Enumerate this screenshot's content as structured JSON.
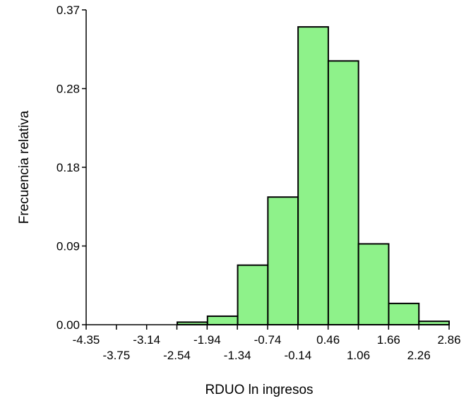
{
  "chart_data": {
    "type": "bar",
    "title": "",
    "xlabel": "RDUO ln ingresos",
    "ylabel": "Frecuencia relativa",
    "bar_color": "#8ef28a",
    "bar_stroke": "#000000",
    "grid": false,
    "ylim": [
      0,
      0.37
    ],
    "xlim": [
      -4.35,
      2.86
    ],
    "y_ticks": [
      "0.00",
      "0.09",
      "0.18",
      "0.28",
      "0.37"
    ],
    "x_ticks_upper": [
      "-4.35",
      "-3.14",
      "-1.94",
      "-0.74",
      "0.46",
      "1.66",
      "2.86"
    ],
    "x_ticks_lower": [
      "-3.75",
      "-2.54",
      "-1.34",
      "-0.14",
      "1.06",
      "2.26"
    ],
    "bins": [
      {
        "start": -4.35,
        "end": -3.75,
        "value": 0.0
      },
      {
        "start": -3.75,
        "end": -3.14,
        "value": 0.0
      },
      {
        "start": -3.14,
        "end": -2.54,
        "value": 0.0
      },
      {
        "start": -2.54,
        "end": -1.94,
        "value": 0.003
      },
      {
        "start": -1.94,
        "end": -1.34,
        "value": 0.01
      },
      {
        "start": -1.34,
        "end": -0.74,
        "value": 0.07
      },
      {
        "start": -0.74,
        "end": -0.14,
        "value": 0.15
      },
      {
        "start": -0.14,
        "end": 0.46,
        "value": 0.35
      },
      {
        "start": 0.46,
        "end": 1.06,
        "value": 0.31
      },
      {
        "start": 1.06,
        "end": 1.66,
        "value": 0.095
      },
      {
        "start": 1.66,
        "end": 2.26,
        "value": 0.025
      },
      {
        "start": 2.26,
        "end": 2.86,
        "value": 0.004
      }
    ]
  }
}
